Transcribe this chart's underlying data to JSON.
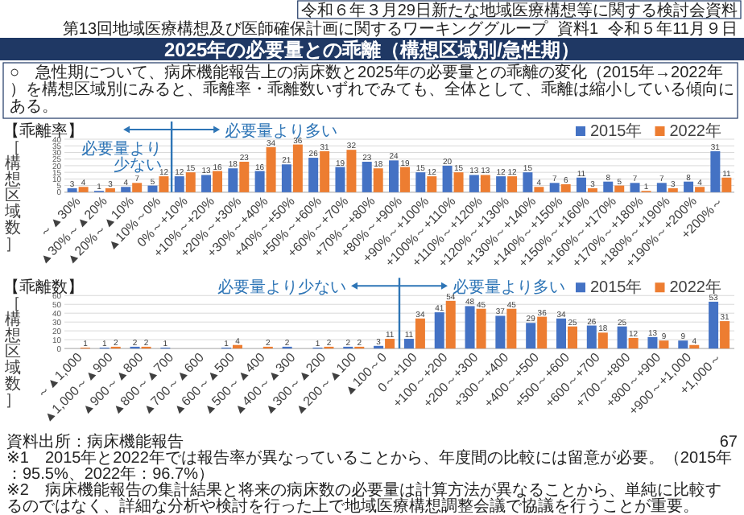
{
  "chart_data": [
    {
      "type": "bar",
      "title": "【乖離率】",
      "ylabel": "［構想区域数］",
      "categories": [
        "～▲30%",
        "▲30%～▲20%",
        "▲20%～▲10%",
        "▲10%～0%",
        "0%～+10%",
        "+10%～+20%",
        "+20%～+30%",
        "+30%～+40%",
        "+40%～+50%",
        "+50%～+60%",
        "+60%～+70%",
        "+70%～+80%",
        "+80%～+90%",
        "+90%～+100%",
        "+100%～+110%",
        "+110%～+120%",
        "+120%～+130%",
        "+130%～+140%",
        "+140%～+150%",
        "+150%～+160%",
        "+160%～+170%",
        "+170%～+180%",
        "+180%～+190%",
        "+190%～+200%",
        "+200%～"
      ],
      "series": [
        {
          "name": "2015年",
          "color": "#4472c4",
          "values": [
            3,
            1,
            4,
            5,
            12,
            13,
            18,
            16,
            21,
            26,
            19,
            23,
            24,
            15,
            20,
            13,
            12,
            15,
            7,
            11,
            8,
            7,
            7,
            8,
            31
          ]
        },
        {
          "name": "2022年",
          "color": "#ed7d31",
          "values": [
            4,
            3,
            7,
            12,
            15,
            16,
            23,
            34,
            36,
            31,
            32,
            18,
            19,
            12,
            15,
            13,
            12,
            4,
            6,
            3,
            5,
            1,
            3,
            4,
            11
          ]
        }
      ],
      "ylim": [
        0,
        40
      ],
      "yticks": [
        0,
        5,
        10,
        15,
        20,
        25,
        30,
        35,
        40
      ],
      "grid": "y",
      "legend": "top right",
      "data_labels": true,
      "annotations": [
        "必要量より少ない",
        "必要量より多い",
        "令和６年３月29日新たな地域医療構想等に関する検討会資料",
        "第13回地域医療構想及び医師確保計画に関するワーキンググループ",
        "資料1",
        "令和５年11月９日",
        "2025年の必要量との乖離（構想区域別/急性期）",
        "○　急性期について、病床機能報告上の病床数と2025年の必要量との乖離の変化（2015年→2022年）を構想区域別にみると、乖離率・乖離数いずれでみても、全体として、乖離は縮小している傾向にある。"
      ]
    },
    {
      "type": "bar",
      "title": "【乖離数】",
      "ylabel": "［構想区域数］",
      "categories": [
        "～▲1,000",
        "▲1,000～▲900",
        "▲900～▲800",
        "▲800～▲700",
        "▲700～▲600",
        "▲600～▲500",
        "▲500～▲400",
        "▲400～▲300",
        "▲300～▲200",
        "▲200～▲100",
        "▲100～0",
        "0～+100",
        "+100～+200",
        "+200～+300",
        "+300～+400",
        "+400～+500",
        "+500～+600",
        "+600～+700",
        "+700～+800",
        "+800～+900",
        "+900～+1,000",
        "+1,000～"
      ],
      "series": [
        {
          "name": "2015年",
          "color": "#4472c4",
          "values": [
            null,
            1,
            2,
            1,
            null,
            1,
            null,
            2,
            1,
            2,
            3,
            11,
            41,
            48,
            37,
            29,
            34,
            26,
            25,
            13,
            9,
            53
          ]
        },
        {
          "name": "2022年",
          "color": "#ed7d31",
          "values": [
            1,
            2,
            2,
            null,
            null,
            4,
            2,
            null,
            2,
            2,
            11,
            34,
            54,
            45,
            45,
            36,
            25,
            18,
            12,
            9,
            4,
            31
          ]
        }
      ],
      "ylim": [
        0,
        60
      ],
      "yticks": [
        0,
        10,
        20,
        30,
        40,
        50,
        60
      ],
      "grid": "y",
      "legend": "top right",
      "data_labels": true,
      "annotations": [
        "必要量より少ない",
        "必要量より多い",
        "資料出所：病床機能報告",
        "※1　2015年と2022年では報告率が異なっていることから、年度間の比較には留意が必要。（2015年：95.5%、2022年：96.7%）",
        "※2　病床機能報告の集計結果と将来の病床数の必要量は計算方法が異なることから、単純に比較するのではなく、詳細な分析や検討を行った上で地域医療構想調整会議で協議を行うことが重要。",
        "67"
      ]
    }
  ]
}
